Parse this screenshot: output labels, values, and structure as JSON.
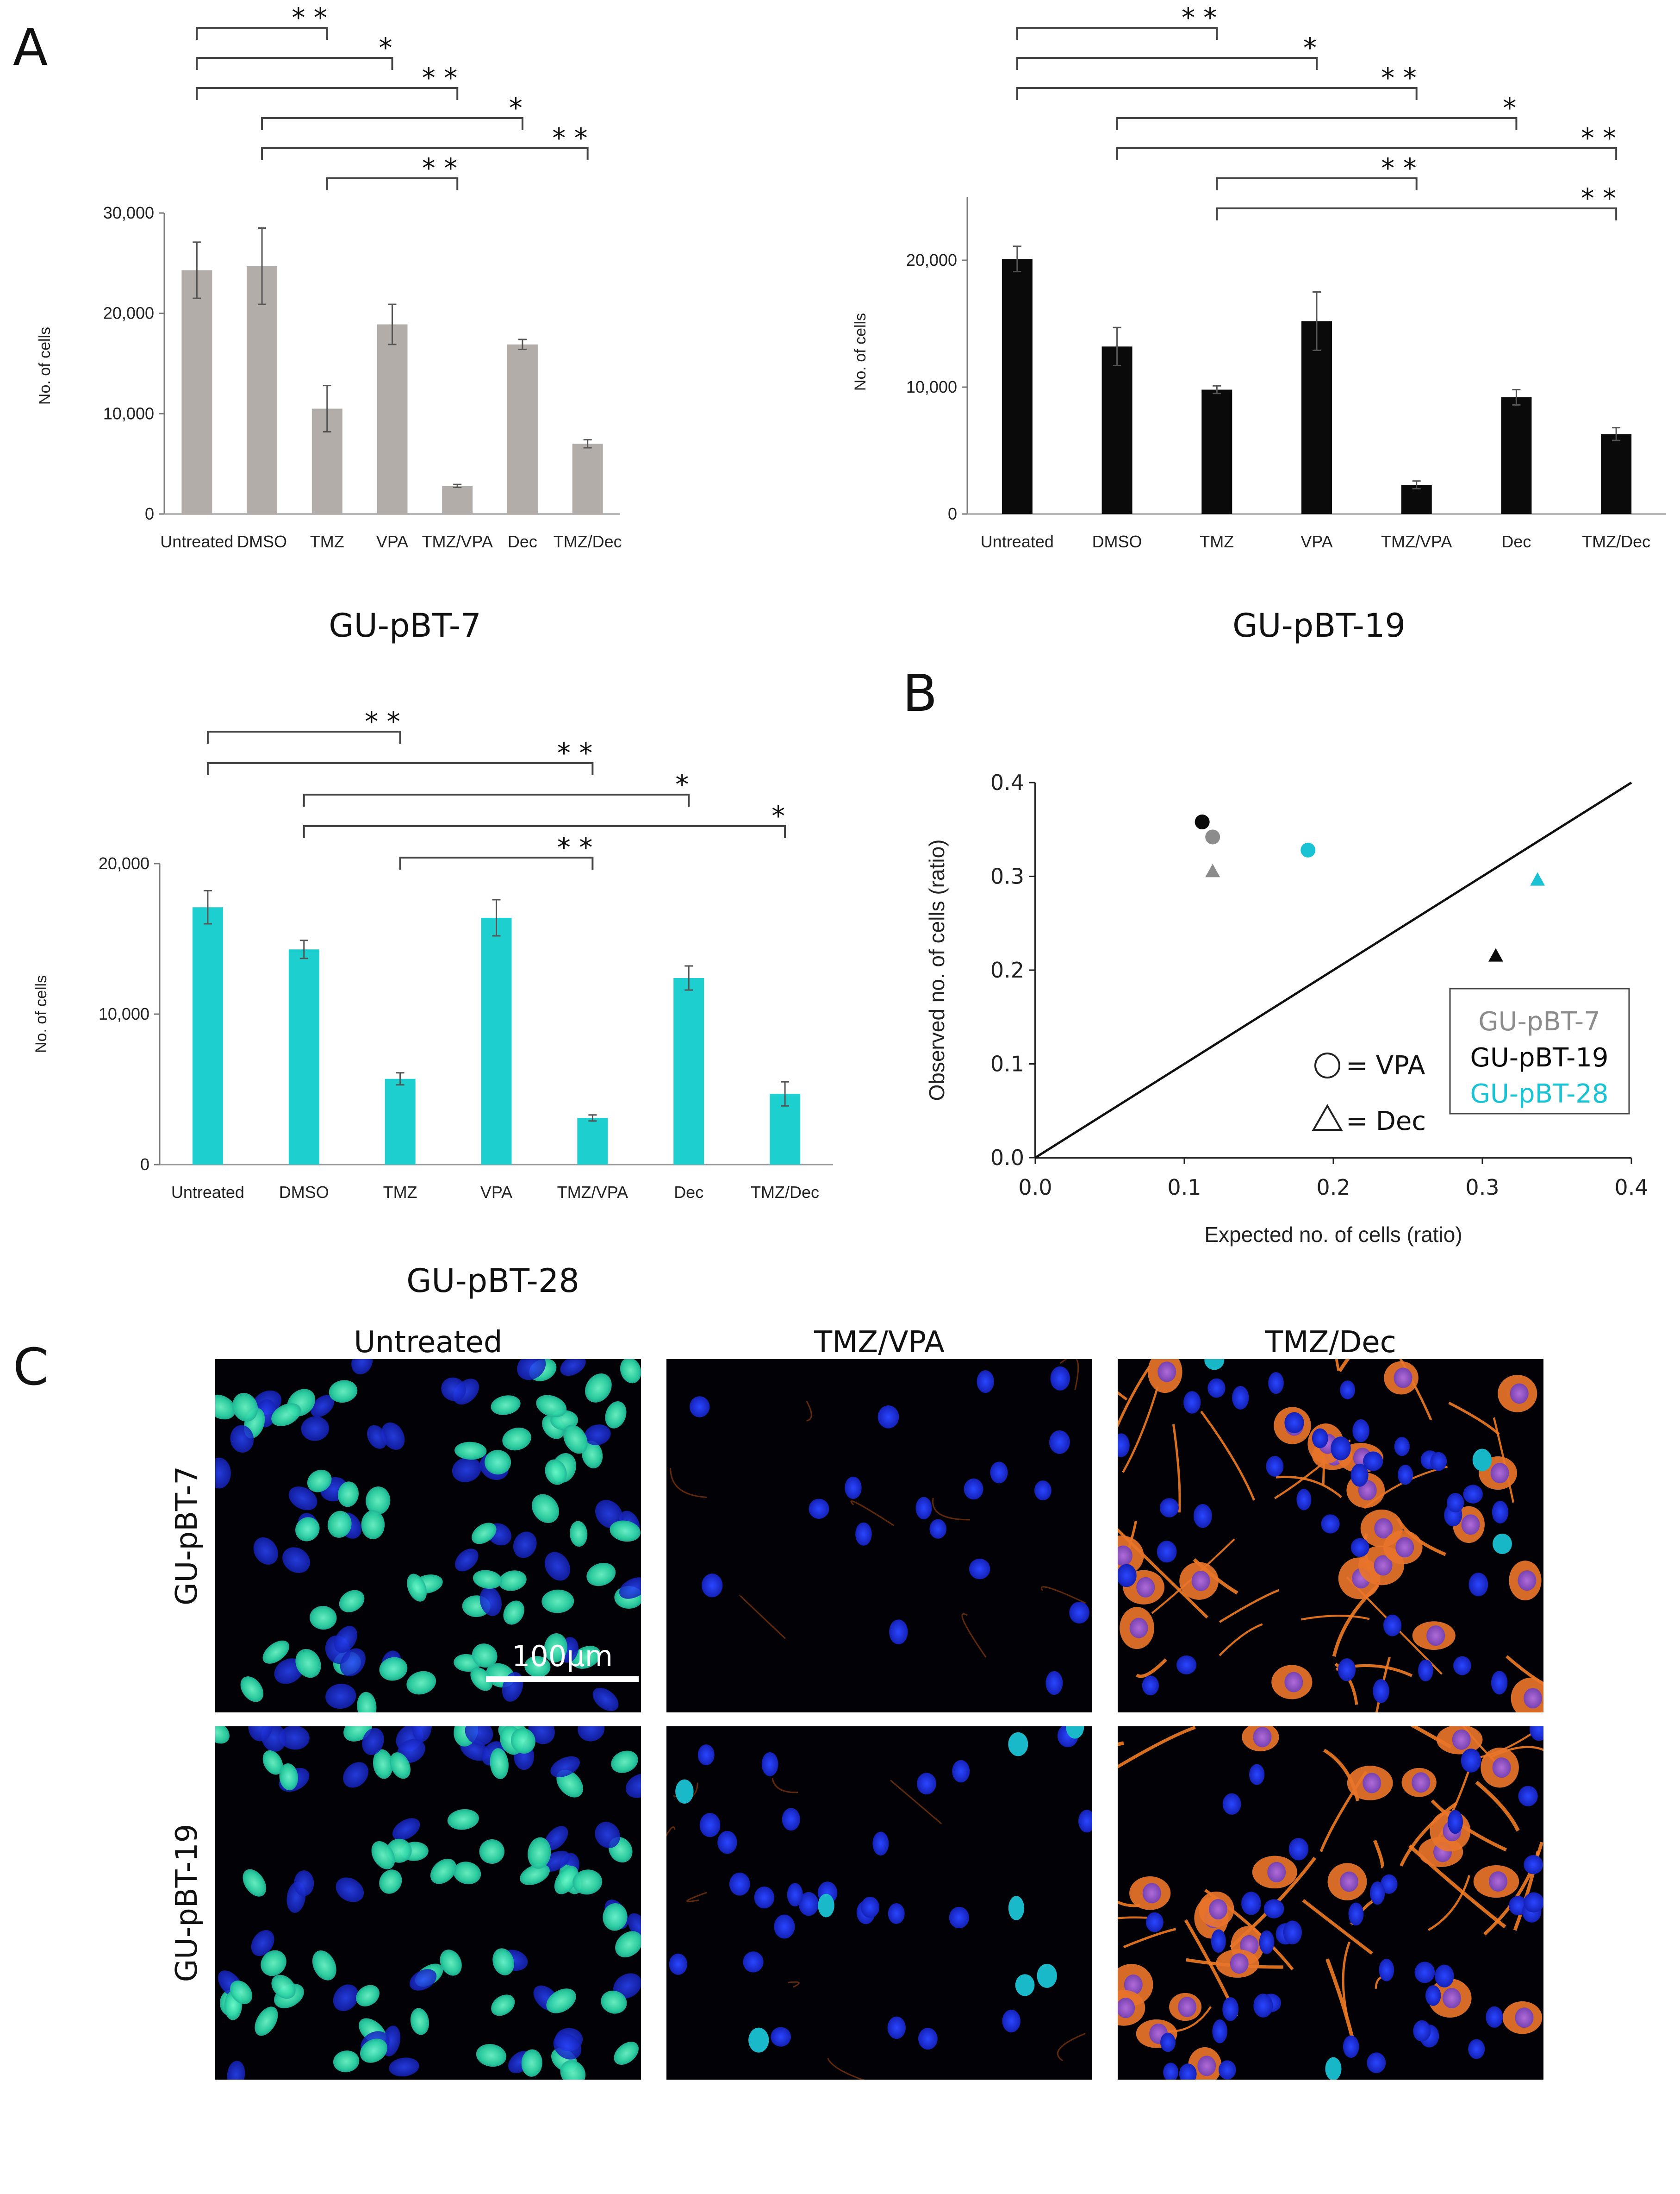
{
  "panels": {
    "a": "A",
    "b": "B",
    "c": "C"
  },
  "colors": {
    "gray": "#b3ada9",
    "black": "#0a0a0a",
    "cyan": "#1ecfd0",
    "legend_gray": "#8c8c8c",
    "legend_cyan": "#19c3d3"
  },
  "chart_data": [
    {
      "id": "chart-pbt7",
      "type": "bar",
      "caption": "GU-pBT-7",
      "ylabel": "No. of cells",
      "color": "#b3ada9",
      "categories": [
        "Untreated",
        "DMSO",
        "TMZ",
        "VPA",
        "TMZ/VPA",
        "Dec",
        "TMZ/Dec"
      ],
      "values": [
        24300,
        24700,
        10500,
        18900,
        2800,
        16900,
        7000
      ],
      "errors": [
        2800,
        3800,
        2300,
        2000,
        150,
        500,
        400
      ],
      "ylim": [
        0,
        30000
      ],
      "yticks": [
        0,
        10000,
        20000,
        30000
      ],
      "ytick_labels": [
        "0",
        "10,000",
        "20,000",
        "30,000"
      ],
      "significance": [
        {
          "from": 0,
          "to": 2,
          "label": "* *"
        },
        {
          "from": 0,
          "to": 3,
          "label": "*"
        },
        {
          "from": 0,
          "to": 4,
          "label": "* *"
        },
        {
          "from": 1,
          "to": 5,
          "label": "*"
        },
        {
          "from": 1,
          "to": 6,
          "label": "* *"
        },
        {
          "from": 2,
          "to": 4,
          "label": "* *"
        }
      ]
    },
    {
      "id": "chart-pbt19",
      "type": "bar",
      "caption": "GU-pBT-19",
      "ylabel": "No. of cells",
      "color": "#0a0a0a",
      "categories": [
        "Untreated",
        "DMSO",
        "TMZ",
        "VPA",
        "TMZ/VPA",
        "Dec",
        "TMZ/Dec"
      ],
      "values": [
        20100,
        13200,
        9800,
        15200,
        2300,
        9200,
        6300
      ],
      "errors": [
        1000,
        1500,
        300,
        2300,
        300,
        600,
        500
      ],
      "ylim": [
        0,
        25000
      ],
      "yticks": [
        0,
        10000,
        20000
      ],
      "ytick_labels": [
        "0",
        "10,000",
        "20,000"
      ],
      "significance": [
        {
          "from": 0,
          "to": 2,
          "label": "* *"
        },
        {
          "from": 0,
          "to": 3,
          "label": "*"
        },
        {
          "from": 0,
          "to": 4,
          "label": "* *"
        },
        {
          "from": 1,
          "to": 5,
          "label": "*"
        },
        {
          "from": 1,
          "to": 6,
          "label": "* *"
        },
        {
          "from": 2,
          "to": 4,
          "label": "* *"
        },
        {
          "from": 2,
          "to": 6,
          "label": "* *"
        }
      ]
    },
    {
      "id": "chart-pbt28",
      "type": "bar",
      "caption": "GU-pBT-28",
      "ylabel": "No. of cells",
      "color": "#1ecfd0",
      "categories": [
        "Untreated",
        "DMSO",
        "TMZ",
        "VPA",
        "TMZ/VPA",
        "Dec",
        "TMZ/Dec"
      ],
      "values": [
        17100,
        14300,
        5700,
        16400,
        3100,
        12400,
        4700
      ],
      "errors": [
        1100,
        600,
        400,
        1200,
        200,
        800,
        800
      ],
      "ylim": [
        0,
        20000
      ],
      "yticks": [
        0,
        10000,
        20000
      ],
      "ytick_labels": [
        "0",
        "10,000",
        "20,000"
      ],
      "significance": [
        {
          "from": 0,
          "to": 2,
          "label": "* *"
        },
        {
          "from": 0,
          "to": 4,
          "label": "* *"
        },
        {
          "from": 1,
          "to": 5,
          "label": "*"
        },
        {
          "from": 1,
          "to": 6,
          "label": "*"
        },
        {
          "from": 2,
          "to": 4,
          "label": "* *"
        }
      ]
    },
    {
      "id": "chart-scatter",
      "type": "scatter",
      "xlabel": "Expected no. of cells (ratio)",
      "ylabel": "Observed no. of cells (ratio)",
      "xlim": [
        0,
        0.4
      ],
      "ylim": [
        0,
        0.4
      ],
      "ticks": [
        0.0,
        0.1,
        0.2,
        0.3,
        0.4
      ],
      "tick_labels": [
        "0.0",
        "0.1",
        "0.2",
        "0.3",
        "0.4"
      ],
      "reference_line": [
        [
          0,
          0
        ],
        [
          0.4,
          0.4
        ]
      ],
      "points": [
        {
          "series": "GU-pBT-19",
          "marker": "circle",
          "x": 0.112,
          "y": 0.358,
          "color": "#0a0a0a"
        },
        {
          "series": "GU-pBT-7",
          "marker": "circle",
          "x": 0.119,
          "y": 0.342,
          "color": "#8c8c8c"
        },
        {
          "series": "GU-pBT-28",
          "marker": "circle",
          "x": 0.183,
          "y": 0.328,
          "color": "#19c3d3"
        },
        {
          "series": "GU-pBT-7",
          "marker": "triangle",
          "x": 0.119,
          "y": 0.305,
          "color": "#8c8c8c"
        },
        {
          "series": "GU-pBT-28",
          "marker": "triangle",
          "x": 0.337,
          "y": 0.296,
          "color": "#19c3d3"
        },
        {
          "series": "GU-pBT-19",
          "marker": "triangle",
          "x": 0.309,
          "y": 0.215,
          "color": "#0a0a0a"
        }
      ],
      "legend_series": [
        {
          "name": "GU-pBT-7",
          "color": "#8c8c8c"
        },
        {
          "name": "GU-pBT-19",
          "color": "#0a0a0a"
        },
        {
          "name": "GU-pBT-28",
          "color": "#19c3d3"
        }
      ],
      "marker_legend": [
        {
          "marker": "circle",
          "label": "= VPA"
        },
        {
          "marker": "triangle",
          "label": "= Dec"
        }
      ]
    }
  ],
  "micrographs": {
    "columns": [
      "Untreated",
      "TMZ/VPA",
      "TMZ/Dec"
    ],
    "rows": [
      "GU-pBT-7",
      "GU-pBT-19"
    ],
    "scale_bar": "100µm"
  }
}
